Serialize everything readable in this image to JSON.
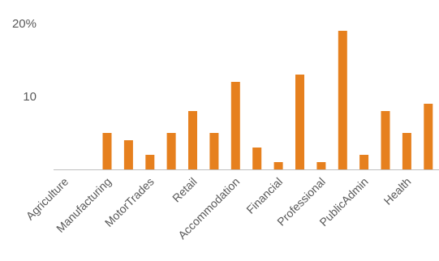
{
  "chart_data": {
    "type": "bar",
    "title": "",
    "xlabel": "",
    "ylabel": "",
    "ylim": [
      0,
      20
    ],
    "y_ticks": [
      {
        "value": 20,
        "label": "20%"
      },
      {
        "value": 10,
        "label": "10"
      }
    ],
    "grid": false,
    "bar_color": "#E6801E",
    "axis_color": "#BFBFBF",
    "categories": [
      "Agriculture",
      "",
      "Manufacturing",
      "",
      "MotorTrades",
      "",
      "Retail",
      "",
      "Accommodation",
      "",
      "Financial",
      "",
      "Professional",
      "",
      "PublicAdmin",
      "",
      "Health",
      ""
    ],
    "values": [
      0,
      0,
      5,
      4,
      2,
      5,
      8,
      5,
      12,
      3,
      1,
      13,
      1,
      19,
      2,
      8,
      5,
      9
    ]
  }
}
